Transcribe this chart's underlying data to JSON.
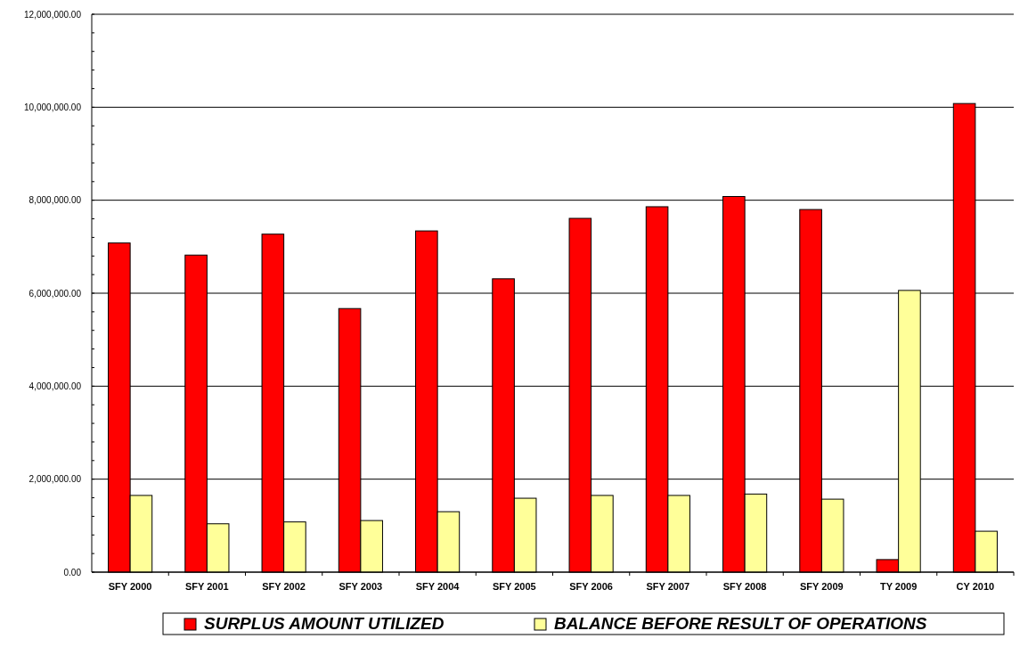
{
  "chart_data": {
    "type": "bar",
    "categories": [
      "SFY 2000",
      "SFY 2001",
      "SFY 2002",
      "SFY 2003",
      "SFY 2004",
      "SFY 2005",
      "SFY 2006",
      "SFY 2007",
      "SFY 2008",
      "SFY 2009",
      "TY 2009",
      "CY 2010"
    ],
    "series": [
      {
        "name": "SURPLUS AMOUNT UTILIZED",
        "color": "#ff0000",
        "values": [
          7080000,
          6820000,
          7270000,
          5670000,
          7340000,
          6310000,
          7610000,
          7860000,
          8080000,
          7800000,
          270000,
          10080000
        ]
      },
      {
        "name": "BALANCE BEFORE RESULT OF OPERATIONS",
        "color": "#ffff99",
        "values": [
          1650000,
          1040000,
          1080000,
          1110000,
          1300000,
          1590000,
          1650000,
          1650000,
          1680000,
          1570000,
          6060000,
          880000
        ]
      }
    ],
    "ylim": [
      0,
      12000000
    ],
    "yticks": [
      {
        "value": 0,
        "label": "0.00"
      },
      {
        "value": 400000,
        "label": null
      },
      {
        "value": 800000,
        "label": null
      },
      {
        "value": 1200000,
        "label": null
      },
      {
        "value": 1600000,
        "label": null
      },
      {
        "value": 2000000,
        "label": "2,000,000.00"
      },
      {
        "value": 2400000,
        "label": null
      },
      {
        "value": 2800000,
        "label": null
      },
      {
        "value": 3200000,
        "label": null
      },
      {
        "value": 3600000,
        "label": null
      },
      {
        "value": 4000000,
        "label": "4,000,000.00"
      },
      {
        "value": 4400000,
        "label": null
      },
      {
        "value": 4800000,
        "label": null
      },
      {
        "value": 5200000,
        "label": null
      },
      {
        "value": 5600000,
        "label": null
      },
      {
        "value": 6000000,
        "label": "6,000,000.00"
      },
      {
        "value": 6400000,
        "label": null
      },
      {
        "value": 6800000,
        "label": null
      },
      {
        "value": 7200000,
        "label": null
      },
      {
        "value": 7600000,
        "label": null
      },
      {
        "value": 8000000,
        "label": "8,000,000.00"
      },
      {
        "value": 8400000,
        "label": null
      },
      {
        "value": 8800000,
        "label": null
      },
      {
        "value": 9200000,
        "label": null
      },
      {
        "value": 9600000,
        "label": null
      },
      {
        "value": 10000000,
        "label": "10,000,000.00"
      },
      {
        "value": 10400000,
        "label": null
      },
      {
        "value": 10800000,
        "label": null
      },
      {
        "value": 11200000,
        "label": null
      },
      {
        "value": 11600000,
        "label": null
      },
      {
        "value": 12000000,
        "label": "12,000,000.00"
      }
    ],
    "grid": "y",
    "legend": "bottom"
  }
}
